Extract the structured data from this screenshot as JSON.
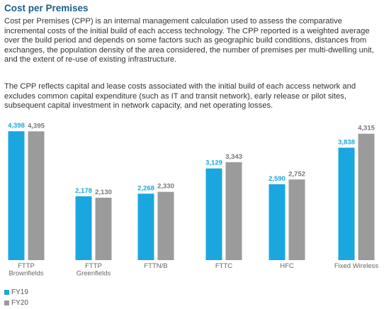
{
  "title": "Cost per Premises",
  "paragraphs": [
    "Cost per Premises (CPP) is an internal management calculation used to assess the comparative incremental costs of the initial build of each access technology. The CPP reported is a weighted average over the build period and depends on some factors such as geographic build conditions, distances from exchanges, the population density of the area considered, the number of premises per multi-dwelling unit, and the extent of re-use of existing infrastructure.",
    "The CPP reflects capital and lease costs associated with the initial build of each access network and excludes common capital expenditure (such as IT and transit network), early release or pilot sites, subsequent capital investment in network capacity, and net operating losses."
  ],
  "chart_data": {
    "type": "bar",
    "categories": [
      [
        "FTTP",
        "Brownfields"
      ],
      [
        "FTTP",
        "Greenfields"
      ],
      [
        "FTTN/B"
      ],
      [
        "FTTC"
      ],
      [
        "HFC"
      ],
      [
        "Fixed Wireless"
      ]
    ],
    "series": [
      {
        "name": "FY19",
        "color": "#1aa7e0",
        "label_color": "#1aa7e0",
        "values": [
          4398,
          2178,
          2268,
          3129,
          2590,
          3838
        ],
        "labels": [
          "4,398",
          "2,178",
          "2,268",
          "3,129",
          "2,590",
          "3,838"
        ]
      },
      {
        "name": "FY20",
        "color": "#9b9b9b",
        "label_color": "#777777",
        "values": [
          4395,
          2130,
          2330,
          3343,
          2752,
          4315
        ],
        "labels": [
          "4,395",
          "2,130",
          "2,330",
          "3,343",
          "2,752",
          "4,315"
        ]
      }
    ],
    "ylim": [
      0,
      4500
    ],
    "grid": false,
    "legend_position": "bottom-left"
  }
}
